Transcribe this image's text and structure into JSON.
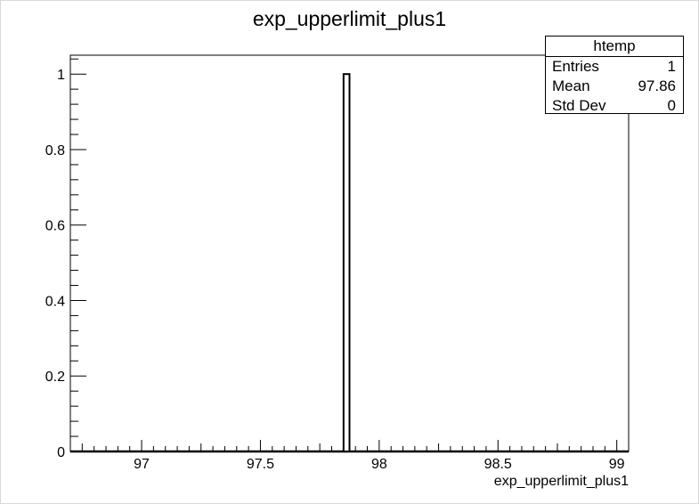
{
  "chart_data": {
    "type": "bar",
    "title": "exp_upperlimit_plus1",
    "xlabel": "exp_upperlimit_plus1",
    "ylabel": "",
    "xlim": [
      96.7,
      99.05
    ],
    "ylim": [
      0,
      1.05
    ],
    "xticks": [
      97,
      97.5,
      98,
      98.5,
      99
    ],
    "xtick_labels": [
      "97",
      "97.5",
      "98",
      "98.5",
      "99"
    ],
    "yticks": [
      0,
      0.2,
      0.4,
      0.6,
      0.8,
      1
    ],
    "ytick_labels": [
      "0",
      "0.2",
      "0.4",
      "0.6",
      "0.8",
      "1"
    ],
    "bins": [
      {
        "x_low": 97.85,
        "x_high": 97.875,
        "value": 1
      }
    ],
    "grid": false,
    "bar_color": "#ffffff",
    "line_color": "#000000"
  },
  "stats": {
    "title": "htemp",
    "rows": [
      {
        "label": "Entries",
        "value": "1"
      },
      {
        "label": "Mean",
        "value": "97.86"
      },
      {
        "label": "Std Dev",
        "value": "0"
      }
    ]
  }
}
